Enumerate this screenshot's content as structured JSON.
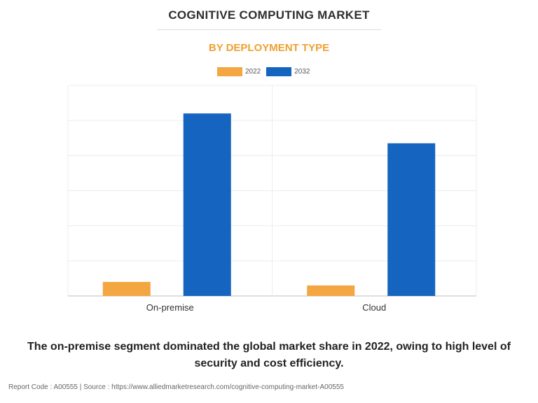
{
  "chart_data": {
    "type": "bar",
    "title": "COGNITIVE COMPUTING MARKET",
    "subtitle": "BY DEPLOYMENT TYPE",
    "categories": [
      "On-premise",
      "Cloud"
    ],
    "series": [
      {
        "name": "2022",
        "values": [
          4,
          3
        ],
        "color": "#f4a640"
      },
      {
        "name": "2032",
        "values": [
          52,
          43.5
        ],
        "color": "#1565c0"
      }
    ],
    "ylim": [
      0,
      60
    ],
    "y_gridlines": [
      0,
      10,
      20,
      30,
      40,
      50,
      60
    ],
    "grid": true,
    "legend_position": "top-center",
    "xlabel": "",
    "ylabel": ""
  },
  "caption": "The on-premise segment dominated the global market share in 2022, owing to high level of security and cost efficiency.",
  "footer": "Report Code : A00555  |  Source : https://www.alliedmarketresearch.com/cognitive-computing-market-A00555"
}
